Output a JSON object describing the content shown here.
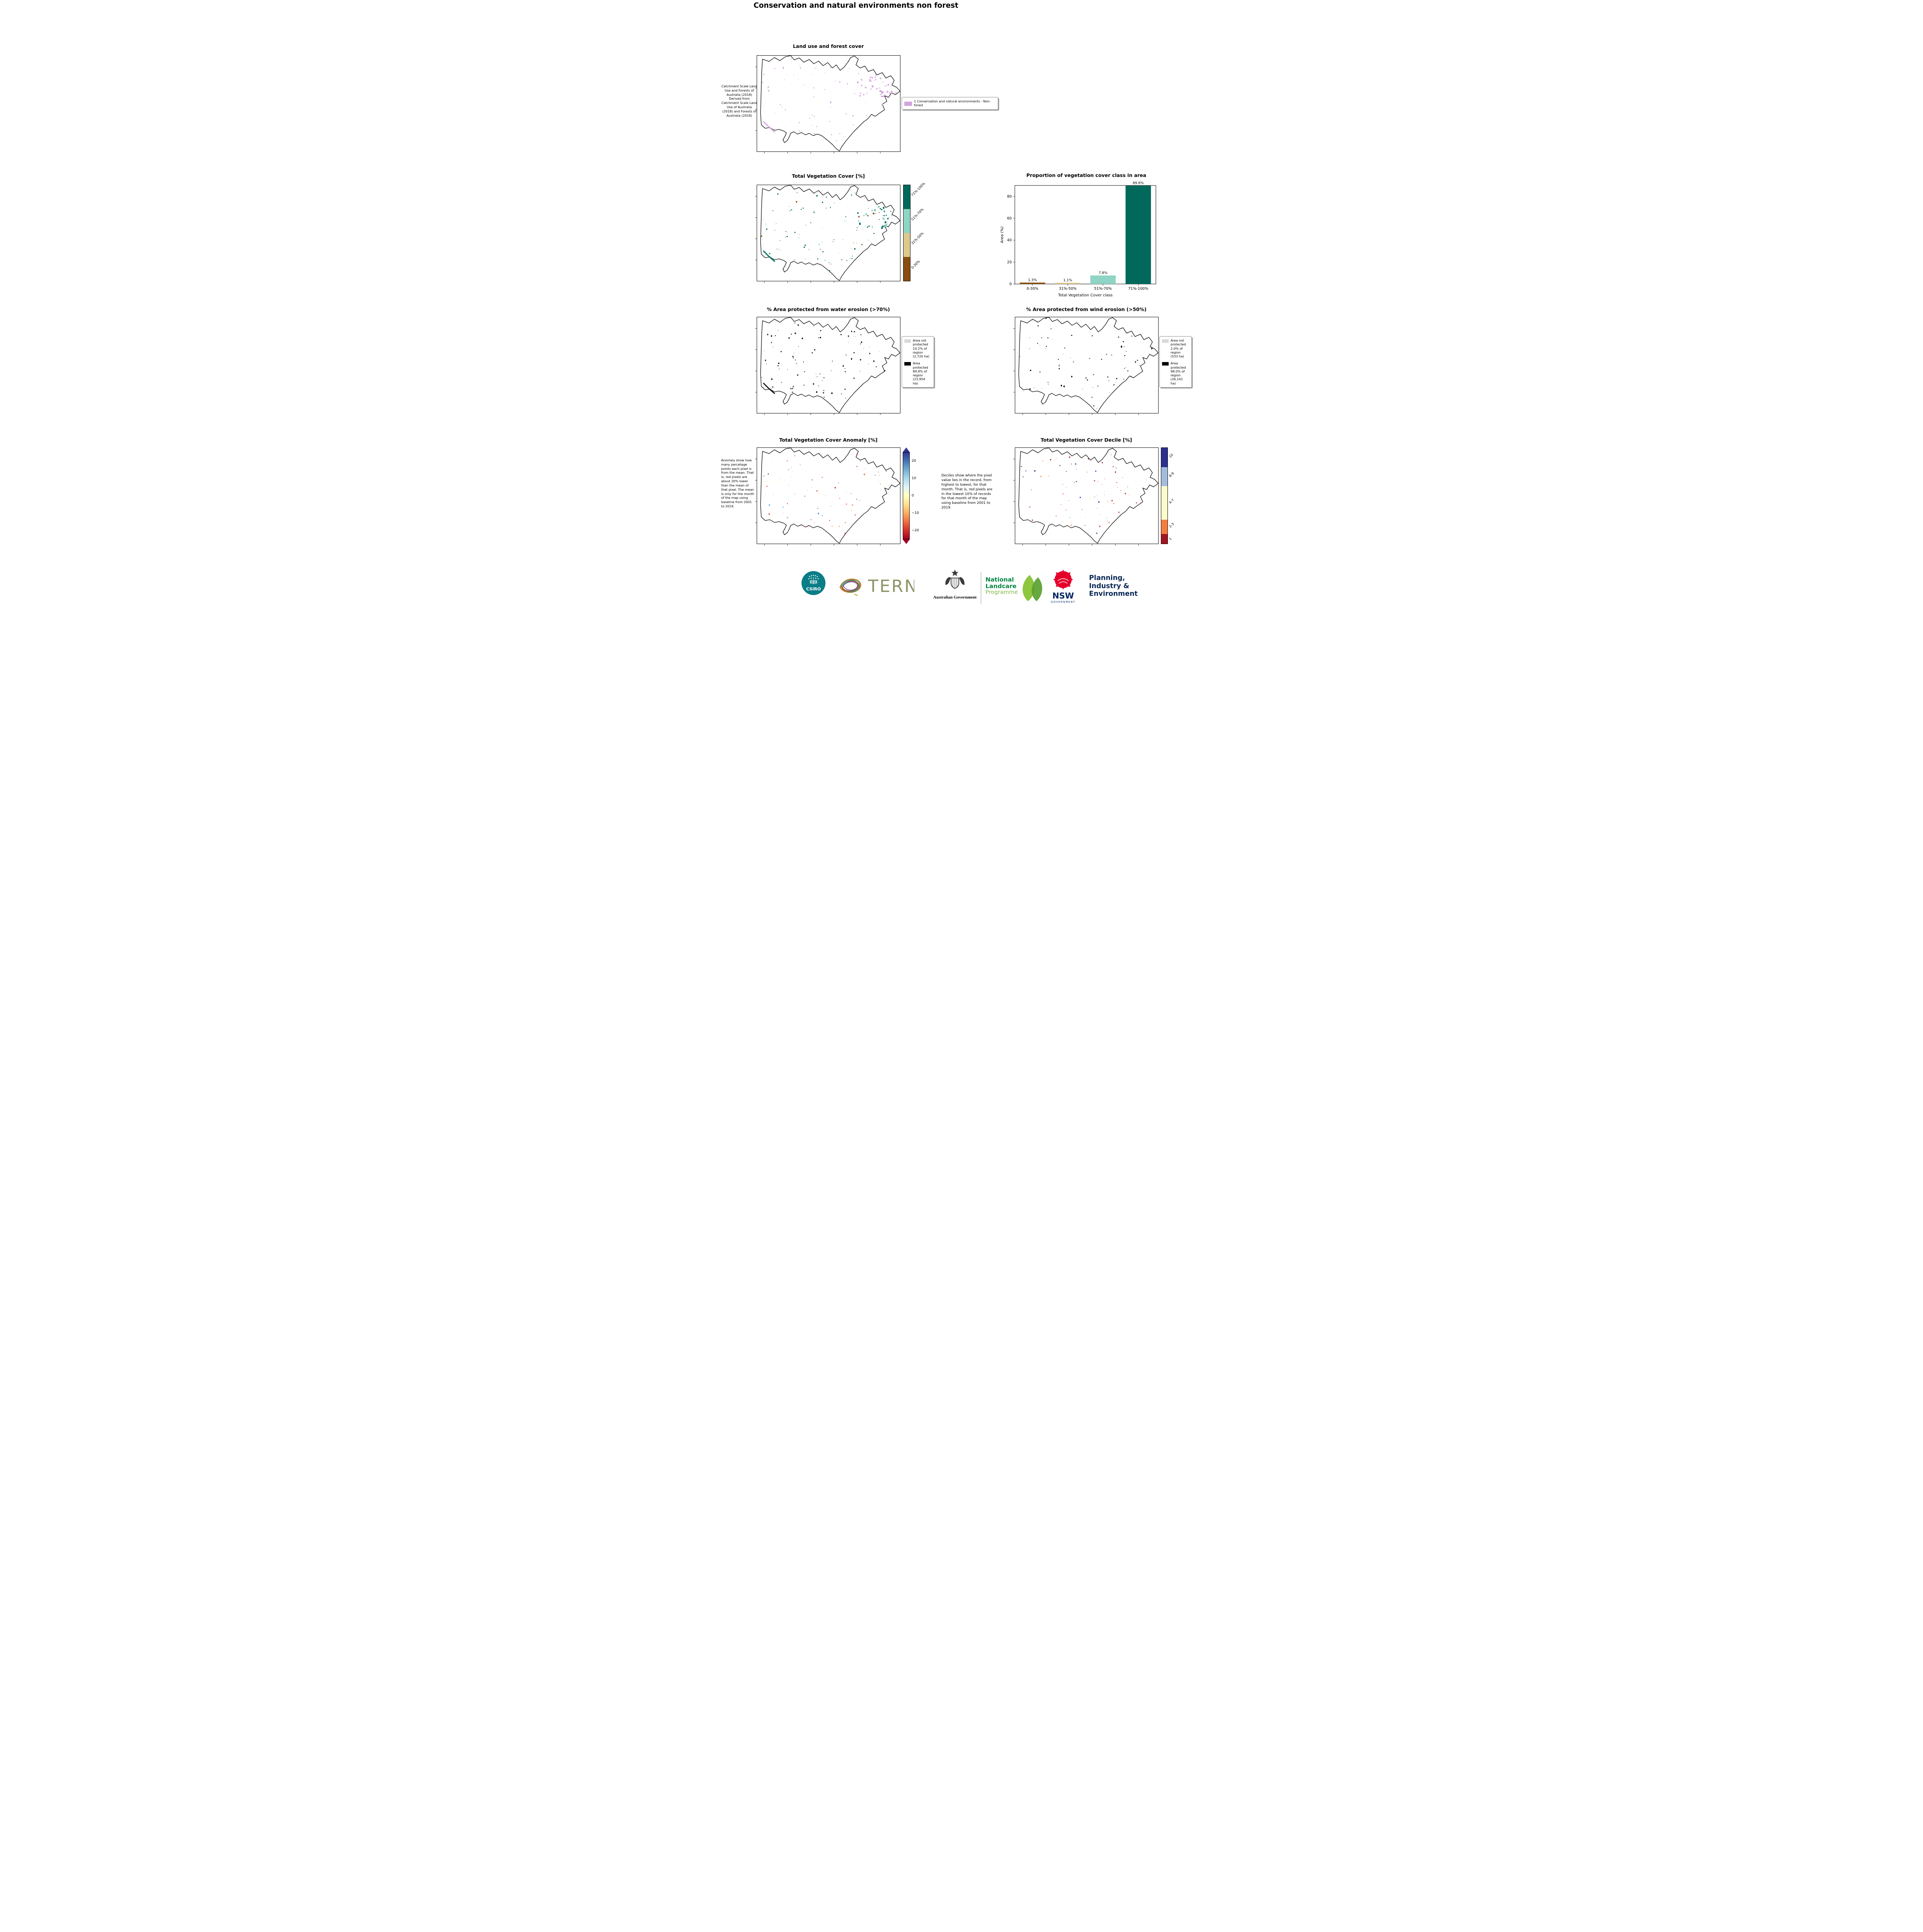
{
  "page": {
    "title": "Conservation and natural environments non forest"
  },
  "panels": {
    "landuse": {
      "title": "Land use and forest cover",
      "caption": "Catchment Scale Land Use and Forests of Australia (2018) Derived from Catchment Scale Land Use of Australia (2018) and Forests of Australia (2018)",
      "legend": [
        {
          "label": "1 Conservation and natural environments - Non-forest",
          "color": "#d3a4dd"
        }
      ]
    },
    "tvc_map": {
      "title": "Total Vegetation Cover [%]",
      "colorbar": [
        {
          "label": "71%-100%",
          "color": "#00695c"
        },
        {
          "label": "51%-70%",
          "color": "#8fd4c5"
        },
        {
          "label": "31%-50%",
          "color": "#ddc98d"
        },
        {
          "label": "0-30%",
          "color": "#8a4e10"
        }
      ]
    },
    "water": {
      "title": "% Area protected from water erosion (>70%)",
      "legend": [
        {
          "label": "Area not protected 10.2% of region (2,720 ha)",
          "color": "#d9d9d9"
        },
        {
          "label": "Area protected 89.8% of region (23,954 ha)",
          "color": "#000000"
        }
      ]
    },
    "wind": {
      "title": "% Area protected from wind erosion (>50%)",
      "legend": [
        {
          "label": "Area not protected 2.0% of region (533 ha)",
          "color": "#d9d9d9"
        },
        {
          "label": "Area protected 98.0% of region (26,141 ha)",
          "color": "#000000"
        }
      ]
    },
    "anomaly": {
      "title": "Total Vegetation Cover Anomaly [%]",
      "caption": "Anomaly show how many percetage points each pixel is from the mean. That is, red pixels are about 20% lower than the mean of that pixel. The mean is only for the month of the map using baseline from 2001 to 2019.",
      "colorbar_ticks": [
        "20",
        "10",
        "0",
        "−10",
        "−20"
      ],
      "colormap": [
        "#313695",
        "#4575b4",
        "#74add1",
        "#abd9e9",
        "#e0f3f8",
        "#ffffbf",
        "#fee090",
        "#fdae61",
        "#f46d43",
        "#d73027",
        "#a50026"
      ]
    },
    "decile": {
      "title": "Total Vegetation Cover Decile [%]",
      "caption": "Deciles show where the pixel value lies in the record, from highest to lowest, for that month. That is, red pixels are in the lowest 10% of records for that month of the map using baseline from 2001 to 2019.",
      "colorbar": [
        {
          "label": "10",
          "color": "#2c2f8f",
          "height": 20
        },
        {
          "label": "8-9",
          "color": "#a3bcdc",
          "height": 20
        },
        {
          "label": "4-7",
          "color": "#fbfbcb",
          "height": 35
        },
        {
          "label": "2-3",
          "color": "#f57c3e",
          "height": 15
        },
        {
          "label": "1",
          "color": "#a31420",
          "height": 10
        }
      ]
    }
  },
  "chart_data": {
    "type": "bar",
    "title": "Proportion of vegetation cover class in area",
    "categories": [
      "0-30%",
      "31%-50%",
      "51%-70%",
      "71%-100%"
    ],
    "values": [
      1.3,
      1.1,
      7.8,
      89.8
    ],
    "value_labels": [
      "1.3%",
      "1.1%",
      "7.8%",
      "89.8%"
    ],
    "bar_colors": [
      "#8a4e10",
      "#ddc98d",
      "#8fd4c5",
      "#00695c"
    ],
    "xlabel": "Total Vegetation Cover class",
    "ylabel": "Area (%)",
    "ylim": [
      0,
      90
    ],
    "yticks": [
      0,
      20,
      40,
      60,
      80
    ],
    "grid": false,
    "legend_position": "none"
  },
  "footer": {
    "csiro": {
      "label": "CSIRO",
      "color": "#0b7d87"
    },
    "tern": {
      "label": "TERN",
      "color": "#8f9468"
    },
    "aus_gov": {
      "label": "Australian Government"
    },
    "landcare": {
      "line1": "National",
      "line2": "Landcare",
      "line3": "Programme",
      "green": "#008542",
      "light_green": "#84b74a"
    },
    "nsw": {
      "label": "NSW",
      "sub": "GOVERNMENT",
      "navy": "#002664",
      "red": "#e4002b"
    },
    "dpie": {
      "line1": "Planning,",
      "line2": "Industry &",
      "line3": "Environment",
      "navy": "#0a2756"
    }
  }
}
